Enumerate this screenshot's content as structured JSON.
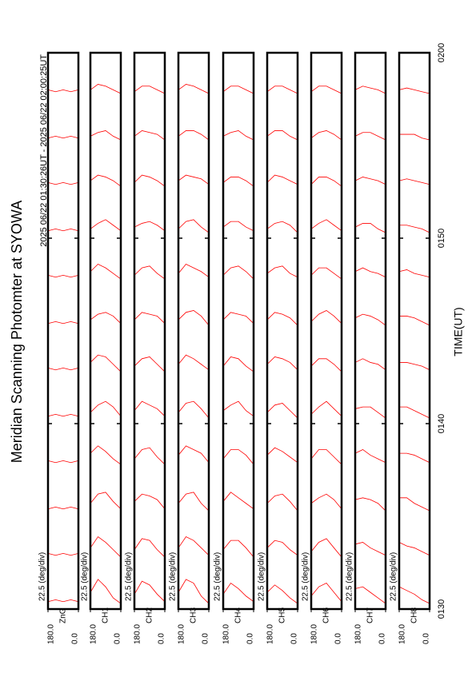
{
  "chart_data": {
    "type": "line",
    "title": "Meridian Scanning Photomter at SYOWA",
    "subtitle": "2025 06/22 01:30:26UT - 2025 06/22 02:00:25UT",
    "xlabel": "TIME(UT)",
    "xlim": [
      0,
      30
    ],
    "xticks": [
      {
        "value": 0,
        "label": "0130"
      },
      {
        "value": 10,
        "label": "0140"
      },
      {
        "value": 20,
        "label": "0150"
      },
      {
        "value": 30,
        "label": "0200"
      }
    ],
    "color": "#ff0000",
    "angles": [
      0,
      45,
      90,
      135,
      180
    ],
    "times": [
      0,
      2.5,
      5,
      7.5,
      10,
      12.5,
      15,
      17.5,
      20,
      22.5,
      25,
      27.5
    ],
    "panels": [
      {
        "scale_label": "22.5 (deg/div)",
        "channel": "ZnG",
        "ylim": [
          0,
          180
        ],
        "yticks": [
          {
            "value": 0,
            "label": "0.0"
          },
          {
            "value": 180,
            "label": "180.0"
          }
        ],
        "traces": [
          [
            0.4,
            0.5,
            0.4,
            0.5,
            0.4
          ],
          [
            0.5,
            0.4,
            0.5,
            0.4,
            0.5
          ],
          [
            0.4,
            0.5,
            0.4,
            0.5,
            0.4
          ],
          [
            0.5,
            0.4,
            0.5,
            0.4,
            0.5
          ],
          [
            0.4,
            0.5,
            0.4,
            0.5,
            0.4
          ],
          [
            0.5,
            0.4,
            0.5,
            0.4,
            0.5
          ],
          [
            0.4,
            0.5,
            0.4,
            0.5,
            0.4
          ],
          [
            0.5,
            0.4,
            0.5,
            0.4,
            0.5
          ],
          [
            0.4,
            0.5,
            0.4,
            0.5,
            0.4
          ],
          [
            0.5,
            0.4,
            0.5,
            0.4,
            0.5
          ],
          [
            0.4,
            0.5,
            0.4,
            0.5,
            0.4
          ],
          [
            0.5,
            0.4,
            0.5,
            0.4,
            0.5
          ]
        ]
      },
      {
        "scale_label": "22.5 (deg/div)",
        "channel": "CH1",
        "ylim": [
          0,
          180
        ],
        "yticks": [
          {
            "value": 0,
            "label": "0.0"
          },
          {
            "value": 180,
            "label": "180.0"
          }
        ],
        "traces": [
          [
            0.3,
            0.6,
            1.2,
            1.6,
            0.9
          ],
          [
            0.3,
            0.7,
            1.1,
            1.4,
            0.8
          ],
          [
            0.4,
            0.8,
            1.3,
            1.2,
            0.7
          ],
          [
            0.3,
            0.6,
            1.0,
            1.3,
            0.9
          ],
          [
            0.4,
            0.9,
            1.2,
            1.0,
            0.6
          ],
          [
            0.3,
            0.7,
            1.1,
            1.2,
            0.8
          ],
          [
            0.4,
            0.8,
            1.0,
            0.9,
            0.6
          ],
          [
            0.3,
            0.6,
            0.9,
            1.1,
            0.7
          ],
          [
            0.4,
            0.7,
            1.0,
            0.8,
            0.5
          ],
          [
            0.3,
            0.6,
            0.8,
            0.9,
            0.6
          ],
          [
            0.3,
            0.5,
            0.8,
            0.7,
            0.5
          ],
          [
            0.3,
            0.5,
            0.7,
            0.8,
            0.5
          ]
        ]
      },
      {
        "scale_label": "22.5 (deg/div)",
        "channel": "CH2",
        "ylim": [
          0,
          180
        ],
        "yticks": [
          {
            "value": 0,
            "label": "0.0"
          },
          {
            "value": 180,
            "label": "180.0"
          }
        ],
        "traces": [
          [
            0.4,
            0.8,
            1.3,
            1.5,
            0.8
          ],
          [
            0.3,
            0.7,
            1.2,
            1.3,
            0.7
          ],
          [
            0.4,
            0.9,
            1.1,
            1.2,
            0.8
          ],
          [
            0.3,
            0.7,
            1.2,
            1.1,
            0.6
          ],
          [
            0.4,
            0.8,
            1.0,
            1.2,
            0.7
          ],
          [
            0.3,
            0.7,
            1.1,
            1.0,
            0.6
          ],
          [
            0.4,
            0.8,
            0.9,
            1.0,
            0.6
          ],
          [
            0.3,
            0.6,
            1.0,
            0.9,
            0.5
          ],
          [
            0.4,
            0.7,
            0.9,
            0.8,
            0.6
          ],
          [
            0.3,
            0.6,
            0.8,
            0.9,
            0.5
          ],
          [
            0.3,
            0.6,
            0.7,
            0.8,
            0.5
          ],
          [
            0.3,
            0.5,
            0.7,
            0.7,
            0.4
          ]
        ]
      },
      {
        "scale_label": "22.5 (deg/div)",
        "channel": "CH3",
        "ylim": [
          0,
          180
        ],
        "yticks": [
          {
            "value": 0,
            "label": "0.0"
          },
          {
            "value": 180,
            "label": "180.0"
          }
        ],
        "traces": [
          [
            0.3,
            0.7,
            1.4,
            1.6,
            0.9
          ],
          [
            0.4,
            0.8,
            1.2,
            1.4,
            0.8
          ],
          [
            0.3,
            0.7,
            1.3,
            1.2,
            0.7
          ],
          [
            0.4,
            0.9,
            1.1,
            1.3,
            0.8
          ],
          [
            0.3,
            0.8,
            1.2,
            1.1,
            0.6
          ],
          [
            0.4,
            0.7,
            1.0,
            1.2,
            0.7
          ],
          [
            0.3,
            0.8,
            1.1,
            1.0,
            0.6
          ],
          [
            0.4,
            0.7,
            0.9,
            1.1,
            0.6
          ],
          [
            0.3,
            0.6,
            1.0,
            0.9,
            0.5
          ],
          [
            0.4,
            0.7,
            0.8,
            0.9,
            0.6
          ],
          [
            0.3,
            0.6,
            0.8,
            0.8,
            0.5
          ],
          [
            0.3,
            0.5,
            0.7,
            0.8,
            0.5
          ]
        ]
      },
      {
        "scale_label": "22.5 (deg/div)",
        "channel": "CH4",
        "ylim": [
          0,
          180
        ],
        "yticks": [
          {
            "value": 0,
            "label": "0.0"
          },
          {
            "value": 180,
            "label": "180.0"
          }
        ],
        "traces": [
          [
            0.4,
            0.7,
            1.1,
            1.4,
            0.8
          ],
          [
            0.3,
            0.8,
            1.2,
            1.2,
            0.7
          ],
          [
            0.4,
            0.7,
            1.0,
            1.3,
            0.8
          ],
          [
            0.3,
            0.8,
            1.1,
            1.1,
            0.6
          ],
          [
            0.4,
            0.7,
            1.2,
            1.0,
            0.7
          ],
          [
            0.3,
            0.6,
            1.0,
            1.1,
            0.6
          ],
          [
            0.4,
            0.8,
            0.9,
            1.0,
            0.6
          ],
          [
            0.3,
            0.7,
            1.0,
            0.9,
            0.5
          ],
          [
            0.4,
            0.6,
            0.9,
            0.9,
            0.6
          ],
          [
            0.3,
            0.6,
            0.8,
            0.8,
            0.5
          ],
          [
            0.3,
            0.5,
            0.8,
            0.7,
            0.5
          ],
          [
            0.3,
            0.5,
            0.7,
            0.7,
            0.4
          ]
        ]
      },
      {
        "scale_label": "22.5 (deg/div)",
        "channel": "CH5",
        "ylim": [
          0,
          180
        ],
        "yticks": [
          {
            "value": 0,
            "label": "0.0"
          },
          {
            "value": 180,
            "label": "180.0"
          }
        ],
        "traces": [
          [
            0.3,
            0.6,
            1.0,
            1.3,
            0.9
          ],
          [
            0.4,
            0.7,
            1.1,
            1.2,
            0.8
          ],
          [
            0.3,
            0.8,
            1.2,
            1.1,
            0.7
          ],
          [
            0.4,
            0.7,
            1.0,
            1.2,
            0.8
          ],
          [
            0.3,
            0.7,
            1.1,
            1.0,
            0.6
          ],
          [
            0.4,
            0.8,
            1.0,
            1.1,
            0.7
          ],
          [
            0.3,
            0.7,
            0.9,
            1.0,
            0.6
          ],
          [
            0.4,
            0.6,
            1.0,
            0.9,
            0.6
          ],
          [
            0.3,
            0.7,
            0.9,
            0.8,
            0.5
          ],
          [
            0.4,
            0.6,
            0.8,
            0.9,
            0.5
          ],
          [
            0.3,
            0.5,
            0.8,
            0.8,
            0.5
          ],
          [
            0.3,
            0.5,
            0.7,
            0.7,
            0.4
          ]
        ]
      },
      {
        "scale_label": "22.5 (deg/div)",
        "channel": "CH6",
        "ylim": [
          0,
          180
        ],
        "yticks": [
          {
            "value": 0,
            "label": "0.0"
          },
          {
            "value": 180,
            "label": "180.0"
          }
        ],
        "traces": [
          [
            0.4,
            0.9,
            1.4,
            1.2,
            0.7
          ],
          [
            0.3,
            0.8,
            1.3,
            1.1,
            0.6
          ],
          [
            0.4,
            0.9,
            1.2,
            1.0,
            0.7
          ],
          [
            0.3,
            0.7,
            1.1,
            1.1,
            0.6
          ],
          [
            0.4,
            0.8,
            1.2,
            0.9,
            0.5
          ],
          [
            0.3,
            0.7,
            1.0,
            1.0,
            0.6
          ],
          [
            0.4,
            0.8,
            1.1,
            0.9,
            0.5
          ],
          [
            0.3,
            0.6,
            0.9,
            0.9,
            0.5
          ],
          [
            0.4,
            0.7,
            1.0,
            0.8,
            0.5
          ],
          [
            0.3,
            0.6,
            0.8,
            0.8,
            0.4
          ],
          [
            0.3,
            0.6,
            0.8,
            0.7,
            0.4
          ],
          [
            0.3,
            0.5,
            0.7,
            0.7,
            0.4
          ]
        ]
      },
      {
        "scale_label": "22.5 (deg/div)",
        "channel": "CH7",
        "ylim": [
          0,
          180
        ],
        "yticks": [
          {
            "value": 0,
            "label": "0.0"
          },
          {
            "value": 180,
            "label": "180.0"
          }
        ],
        "traces": [
          [
            0.3,
            0.6,
            0.9,
            1.2,
            1.1
          ],
          [
            0.4,
            0.6,
            0.8,
            1.1,
            1.0
          ],
          [
            0.3,
            0.7,
            0.9,
            1.0,
            0.9
          ],
          [
            0.4,
            0.6,
            0.8,
            1.1,
            0.9
          ],
          [
            0.3,
            0.6,
            0.9,
            0.9,
            0.8
          ],
          [
            0.4,
            0.7,
            0.8,
            1.0,
            0.8
          ],
          [
            0.3,
            0.6,
            0.8,
            0.9,
            0.7
          ],
          [
            0.4,
            0.6,
            0.7,
            0.9,
            0.7
          ],
          [
            0.3,
            0.5,
            0.8,
            0.8,
            0.6
          ],
          [
            0.4,
            0.6,
            0.7,
            0.8,
            0.6
          ],
          [
            0.3,
            0.5,
            0.7,
            0.7,
            0.5
          ],
          [
            0.3,
            0.5,
            0.6,
            0.7,
            0.5
          ]
        ]
      },
      {
        "scale_label": "22.5 (deg/div)",
        "channel": "CH8",
        "ylim": [
          0,
          180
        ],
        "yticks": [
          {
            "value": 0,
            "label": "0.0"
          },
          {
            "value": 180,
            "label": "180.0"
          }
        ],
        "traces": [
          [
            0.3,
            0.5,
            0.8,
            1.0,
            1.2
          ],
          [
            0.4,
            0.6,
            0.8,
            0.9,
            1.1
          ],
          [
            0.3,
            0.5,
            0.7,
            1.0,
            1.0
          ],
          [
            0.4,
            0.6,
            0.8,
            0.9,
            0.9
          ],
          [
            0.3,
            0.5,
            0.7,
            0.9,
            0.9
          ],
          [
            0.4,
            0.6,
            0.7,
            0.8,
            0.8
          ],
          [
            0.3,
            0.5,
            0.7,
            0.8,
            0.8
          ],
          [
            0.4,
            0.5,
            0.6,
            0.8,
            0.7
          ],
          [
            0.3,
            0.5,
            0.6,
            0.7,
            0.7
          ],
          [
            0.4,
            0.5,
            0.6,
            0.7,
            0.6
          ],
          [
            0.3,
            0.4,
            0.6,
            0.6,
            0.6
          ],
          [
            0.3,
            0.4,
            0.5,
            0.6,
            0.5
          ]
        ]
      }
    ]
  }
}
